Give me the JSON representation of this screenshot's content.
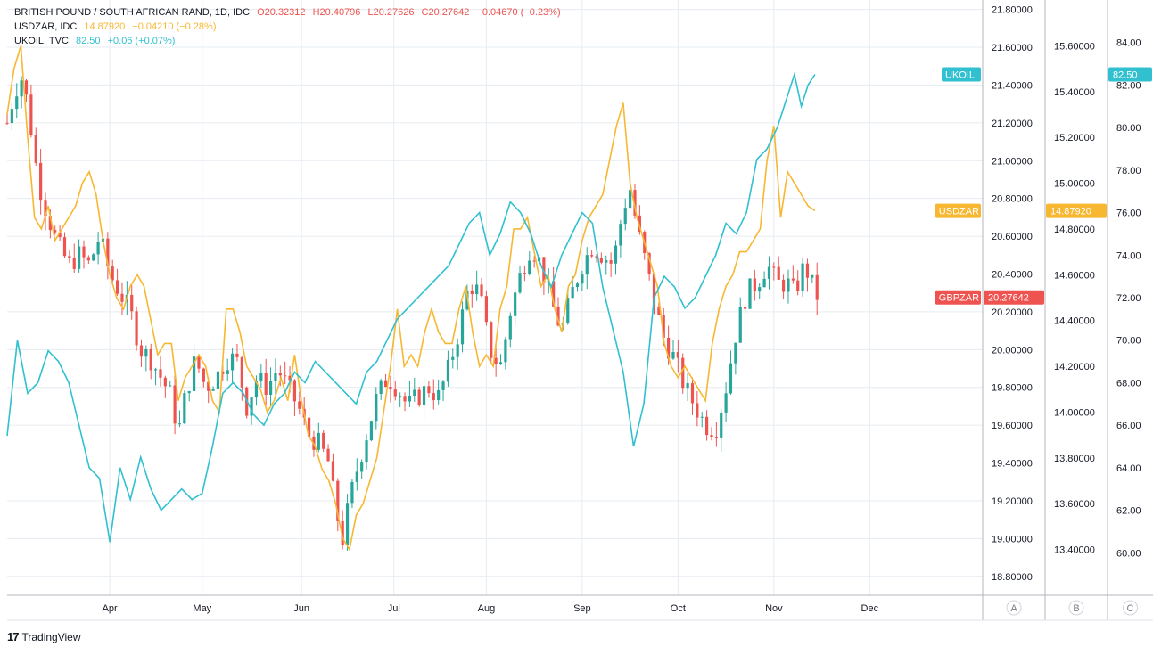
{
  "legend": {
    "gbpzar": {
      "name": "BRITISH POUND / SOUTH AFRICAN RAND, 1D, IDC",
      "o": "O20.32312",
      "h": "H20.40796",
      "l": "L20.27626",
      "c": "C20.27642",
      "chg": "−0.04670 (−0.23%)"
    },
    "usdzar": {
      "name": "USDZAR, IDC",
      "last": "14.87920",
      "chg": "−0.04210 (−0.28%)"
    },
    "ukoil": {
      "name": "UKOIL, TVC",
      "last": "82.50",
      "chg": "+0.06 (+0.07%)"
    }
  },
  "footer": {
    "brand": "TradingView"
  },
  "colors": {
    "up": "#26a69a",
    "down": "#ef5350",
    "usdzar": "#f7b731",
    "ukoil": "#30c0d0",
    "grid": "#e6ecf1"
  },
  "chart_data": {
    "type": "candlestick+line",
    "x_axis": {
      "labels": [
        "Apr",
        "May",
        "Jun",
        "Jul",
        "Aug",
        "Sep",
        "Oct",
        "Nov",
        "Dec"
      ]
    },
    "axes": {
      "A": {
        "label": "A",
        "range": [
          18.7,
          21.85
        ],
        "ticks": [
          "18.80000",
          "19.00000",
          "19.20000",
          "19.40000",
          "19.60000",
          "19.80000",
          "20.00000",
          "20.20000",
          "20.40000",
          "20.60000",
          "20.80000",
          "21.00000",
          "21.20000",
          "21.40000",
          "21.60000",
          "21.80000"
        ]
      },
      "B": {
        "label": "B",
        "range": [
          13.2,
          15.8
        ],
        "ticks": [
          "13.40000",
          "13.60000",
          "13.80000",
          "14.00000",
          "14.20000",
          "14.40000",
          "14.60000",
          "14.80000",
          "15.00000",
          "15.20000",
          "15.40000",
          "15.60000"
        ]
      },
      "C": {
        "label": "C",
        "range": [
          58,
          86
        ],
        "ticks": [
          "60.00",
          "62.00",
          "64.00",
          "66.00",
          "68.00",
          "70.00",
          "72.00",
          "74.00",
          "76.00",
          "78.00",
          "80.00",
          "82.00",
          "84.00"
        ]
      }
    },
    "series": [
      {
        "name": "GBPZAR",
        "axis": "A",
        "last_label": "20.27642",
        "anchors": [
          [
            0,
            21.2
          ],
          [
            2,
            21.35
          ],
          [
            4,
            21.45
          ],
          [
            6,
            21.3
          ],
          [
            9,
            20.9
          ],
          [
            12,
            20.7
          ],
          [
            15,
            20.55
          ],
          [
            18,
            20.45
          ],
          [
            21,
            20.5
          ],
          [
            24,
            20.45
          ],
          [
            27,
            20.6
          ],
          [
            30,
            20.4
          ],
          [
            33,
            20.3
          ],
          [
            36,
            20.2
          ],
          [
            39,
            20.0
          ],
          [
            42,
            19.95
          ],
          [
            45,
            19.85
          ],
          [
            48,
            19.75
          ],
          [
            50,
            19.55
          ],
          [
            52,
            19.75
          ],
          [
            55,
            19.95
          ],
          [
            58,
            19.8
          ],
          [
            61,
            19.85
          ],
          [
            64,
            19.95
          ],
          [
            67,
            19.95
          ],
          [
            70,
            19.7
          ],
          [
            73,
            19.85
          ],
          [
            76,
            19.8
          ],
          [
            79,
            19.9
          ],
          [
            82,
            19.8
          ],
          [
            85,
            19.7
          ],
          [
            88,
            19.55
          ],
          [
            91,
            19.5
          ],
          [
            94,
            19.4
          ],
          [
            96,
            19.15
          ],
          [
            98,
            19.0
          ],
          [
            100,
            19.2
          ],
          [
            102,
            19.35
          ],
          [
            105,
            19.55
          ],
          [
            108,
            19.75
          ],
          [
            111,
            19.85
          ],
          [
            114,
            19.8
          ],
          [
            117,
            19.7
          ],
          [
            120,
            19.75
          ],
          [
            123,
            19.8
          ],
          [
            126,
            19.75
          ],
          [
            129,
            19.9
          ],
          [
            132,
            20.1
          ],
          [
            135,
            20.35
          ],
          [
            138,
            20.3
          ],
          [
            141,
            20.0
          ],
          [
            144,
            19.9
          ],
          [
            147,
            20.2
          ],
          [
            150,
            20.4
          ],
          [
            153,
            20.55
          ],
          [
            156,
            20.45
          ],
          [
            159,
            20.25
          ],
          [
            162,
            20.1
          ],
          [
            165,
            20.3
          ],
          [
            168,
            20.45
          ],
          [
            171,
            20.55
          ],
          [
            174,
            20.5
          ],
          [
            177,
            20.45
          ],
          [
            180,
            20.75
          ],
          [
            182,
            20.85
          ],
          [
            184,
            20.65
          ],
          [
            186,
            20.5
          ],
          [
            189,
            20.25
          ],
          [
            192,
            20.05
          ],
          [
            195,
            19.95
          ],
          [
            198,
            19.8
          ],
          [
            201,
            19.7
          ],
          [
            204,
            19.6
          ],
          [
            207,
            19.58
          ],
          [
            210,
            19.8
          ],
          [
            213,
            20.1
          ],
          [
            216,
            20.3
          ],
          [
            219,
            20.35
          ],
          [
            222,
            20.45
          ],
          [
            225,
            20.35
          ],
          [
            228,
            20.35
          ],
          [
            230,
            20.3
          ],
          [
            233,
            20.45
          ],
          [
            236,
            20.3
          ],
          [
            238,
            20.25
          ]
        ]
      },
      {
        "name": "USDZAR",
        "axis": "B",
        "last_label": "14.87920",
        "points": [
          [
            0,
            15.3
          ],
          [
            2,
            15.5
          ],
          [
            4,
            15.6
          ],
          [
            6,
            15.2
          ],
          [
            8,
            14.85
          ],
          [
            10,
            14.8
          ],
          [
            12,
            14.9
          ],
          [
            14,
            14.75
          ],
          [
            16,
            14.8
          ],
          [
            18,
            14.85
          ],
          [
            20,
            14.9
          ],
          [
            22,
            15.0
          ],
          [
            24,
            15.05
          ],
          [
            26,
            14.95
          ],
          [
            28,
            14.75
          ],
          [
            30,
            14.6
          ],
          [
            32,
            14.5
          ],
          [
            34,
            14.45
          ],
          [
            36,
            14.55
          ],
          [
            38,
            14.6
          ],
          [
            40,
            14.55
          ],
          [
            42,
            14.4
          ],
          [
            44,
            14.25
          ],
          [
            46,
            14.3
          ],
          [
            48,
            14.3
          ],
          [
            50,
            14.05
          ],
          [
            52,
            14.15
          ],
          [
            54,
            14.2
          ],
          [
            56,
            14.25
          ],
          [
            58,
            14.2
          ],
          [
            60,
            14.05
          ],
          [
            62,
            14.0
          ],
          [
            64,
            14.45
          ],
          [
            66,
            14.45
          ],
          [
            68,
            14.35
          ],
          [
            70,
            14.2
          ],
          [
            72,
            14.15
          ],
          [
            74,
            14.1
          ],
          [
            76,
            14.0
          ],
          [
            78,
            14.05
          ],
          [
            80,
            14.15
          ],
          [
            82,
            14.05
          ],
          [
            84,
            14.25
          ],
          [
            86,
            14.05
          ],
          [
            88,
            13.9
          ],
          [
            90,
            13.85
          ],
          [
            92,
            13.75
          ],
          [
            94,
            13.7
          ],
          [
            96,
            13.6
          ],
          [
            98,
            13.45
          ],
          [
            100,
            13.4
          ],
          [
            102,
            13.55
          ],
          [
            104,
            13.6
          ],
          [
            106,
            13.7
          ],
          [
            108,
            13.8
          ],
          [
            110,
            14.0
          ],
          [
            112,
            14.2
          ],
          [
            114,
            14.45
          ],
          [
            116,
            14.2
          ],
          [
            118,
            14.25
          ],
          [
            120,
            14.2
          ],
          [
            122,
            14.35
          ],
          [
            124,
            14.45
          ],
          [
            126,
            14.35
          ],
          [
            128,
            14.3
          ],
          [
            130,
            14.3
          ],
          [
            132,
            14.45
          ],
          [
            134,
            14.55
          ],
          [
            136,
            14.35
          ],
          [
            138,
            14.2
          ],
          [
            140,
            14.25
          ],
          [
            142,
            14.2
          ],
          [
            144,
            14.45
          ],
          [
            146,
            14.55
          ],
          [
            148,
            14.8
          ],
          [
            150,
            14.8
          ],
          [
            152,
            14.85
          ],
          [
            154,
            14.7
          ],
          [
            156,
            14.55
          ],
          [
            158,
            14.6
          ],
          [
            160,
            14.45
          ],
          [
            162,
            14.35
          ],
          [
            164,
            14.55
          ],
          [
            166,
            14.6
          ],
          [
            168,
            14.75
          ],
          [
            170,
            14.85
          ],
          [
            172,
            14.9
          ],
          [
            174,
            14.95
          ],
          [
            176,
            15.1
          ],
          [
            178,
            15.25
          ],
          [
            180,
            15.35
          ],
          [
            182,
            15.0
          ],
          [
            184,
            14.85
          ],
          [
            186,
            14.75
          ],
          [
            188,
            14.65
          ],
          [
            190,
            14.55
          ],
          [
            192,
            14.3
          ],
          [
            194,
            14.2
          ],
          [
            196,
            14.15
          ],
          [
            198,
            14.2
          ],
          [
            200,
            14.15
          ],
          [
            202,
            14.1
          ],
          [
            204,
            14.05
          ],
          [
            206,
            14.3
          ],
          [
            208,
            14.45
          ],
          [
            210,
            14.55
          ],
          [
            212,
            14.6
          ],
          [
            214,
            14.7
          ],
          [
            216,
            14.7
          ],
          [
            218,
            14.75
          ],
          [
            220,
            14.8
          ],
          [
            222,
            15.1
          ],
          [
            224,
            15.25
          ],
          [
            226,
            14.85
          ],
          [
            228,
            15.05
          ],
          [
            230,
            15.0
          ],
          [
            232,
            14.95
          ],
          [
            234,
            14.9
          ],
          [
            236,
            14.88
          ]
        ]
      },
      {
        "name": "UKOIL",
        "axis": "C",
        "last_label": "82.50",
        "points": [
          [
            0,
            65.5
          ],
          [
            3,
            70.0
          ],
          [
            6,
            67.5
          ],
          [
            9,
            68.0
          ],
          [
            12,
            69.5
          ],
          [
            15,
            69.0
          ],
          [
            18,
            68.0
          ],
          [
            21,
            66.0
          ],
          [
            24,
            64.0
          ],
          [
            27,
            63.5
          ],
          [
            30,
            60.5
          ],
          [
            33,
            64.0
          ],
          [
            36,
            62.5
          ],
          [
            39,
            64.5
          ],
          [
            42,
            63.0
          ],
          [
            45,
            62.0
          ],
          [
            48,
            62.5
          ],
          [
            51,
            63.0
          ],
          [
            54,
            62.5
          ],
          [
            57,
            62.8
          ],
          [
            60,
            65.0
          ],
          [
            63,
            67.5
          ],
          [
            66,
            68.0
          ],
          [
            69,
            67.5
          ],
          [
            72,
            66.5
          ],
          [
            75,
            66.0
          ],
          [
            78,
            67.0
          ],
          [
            81,
            67.5
          ],
          [
            84,
            68.5
          ],
          [
            87,
            68.0
          ],
          [
            90,
            69.0
          ],
          [
            93,
            68.5
          ],
          [
            96,
            68.0
          ],
          [
            99,
            67.5
          ],
          [
            102,
            67.0
          ],
          [
            105,
            68.5
          ],
          [
            108,
            69.0
          ],
          [
            111,
            70.0
          ],
          [
            114,
            71.0
          ],
          [
            117,
            71.5
          ],
          [
            120,
            72.0
          ],
          [
            123,
            72.5
          ],
          [
            126,
            73.0
          ],
          [
            129,
            73.5
          ],
          [
            132,
            74.5
          ],
          [
            135,
            75.5
          ],
          [
            138,
            76.0
          ],
          [
            141,
            74.0
          ],
          [
            144,
            75.0
          ],
          [
            147,
            76.5
          ],
          [
            150,
            76.0
          ],
          [
            153,
            75.0
          ],
          [
            156,
            73.5
          ],
          [
            159,
            72.5
          ],
          [
            162,
            74.0
          ],
          [
            165,
            75.0
          ],
          [
            168,
            76.0
          ],
          [
            171,
            75.5
          ],
          [
            174,
            72.5
          ],
          [
            177,
            70.5
          ],
          [
            180,
            68.5
          ],
          [
            183,
            65.0
          ],
          [
            186,
            67.0
          ],
          [
            189,
            72.0
          ],
          [
            192,
            73.0
          ],
          [
            195,
            72.5
          ],
          [
            198,
            71.5
          ],
          [
            201,
            72.0
          ],
          [
            204,
            73.0
          ],
          [
            207,
            74.0
          ],
          [
            210,
            75.5
          ],
          [
            213,
            75.0
          ],
          [
            216,
            76.0
          ],
          [
            219,
            78.5
          ],
          [
            222,
            79.0
          ],
          [
            225,
            80.0
          ],
          [
            228,
            81.5
          ],
          [
            230,
            82.5
          ],
          [
            232,
            81.0
          ],
          [
            234,
            82.0
          ],
          [
            236,
            82.5
          ]
        ]
      }
    ],
    "time_labels_mapping": {
      "Apr": 30,
      "May": 57,
      "Jun": 86,
      "Jul": 113,
      "Aug": 140,
      "Sep": 168,
      "Oct": 196,
      "Nov": 224,
      "Dec": 252
    },
    "time_total": 285,
    "grid": true,
    "legend_position": "top-left"
  }
}
